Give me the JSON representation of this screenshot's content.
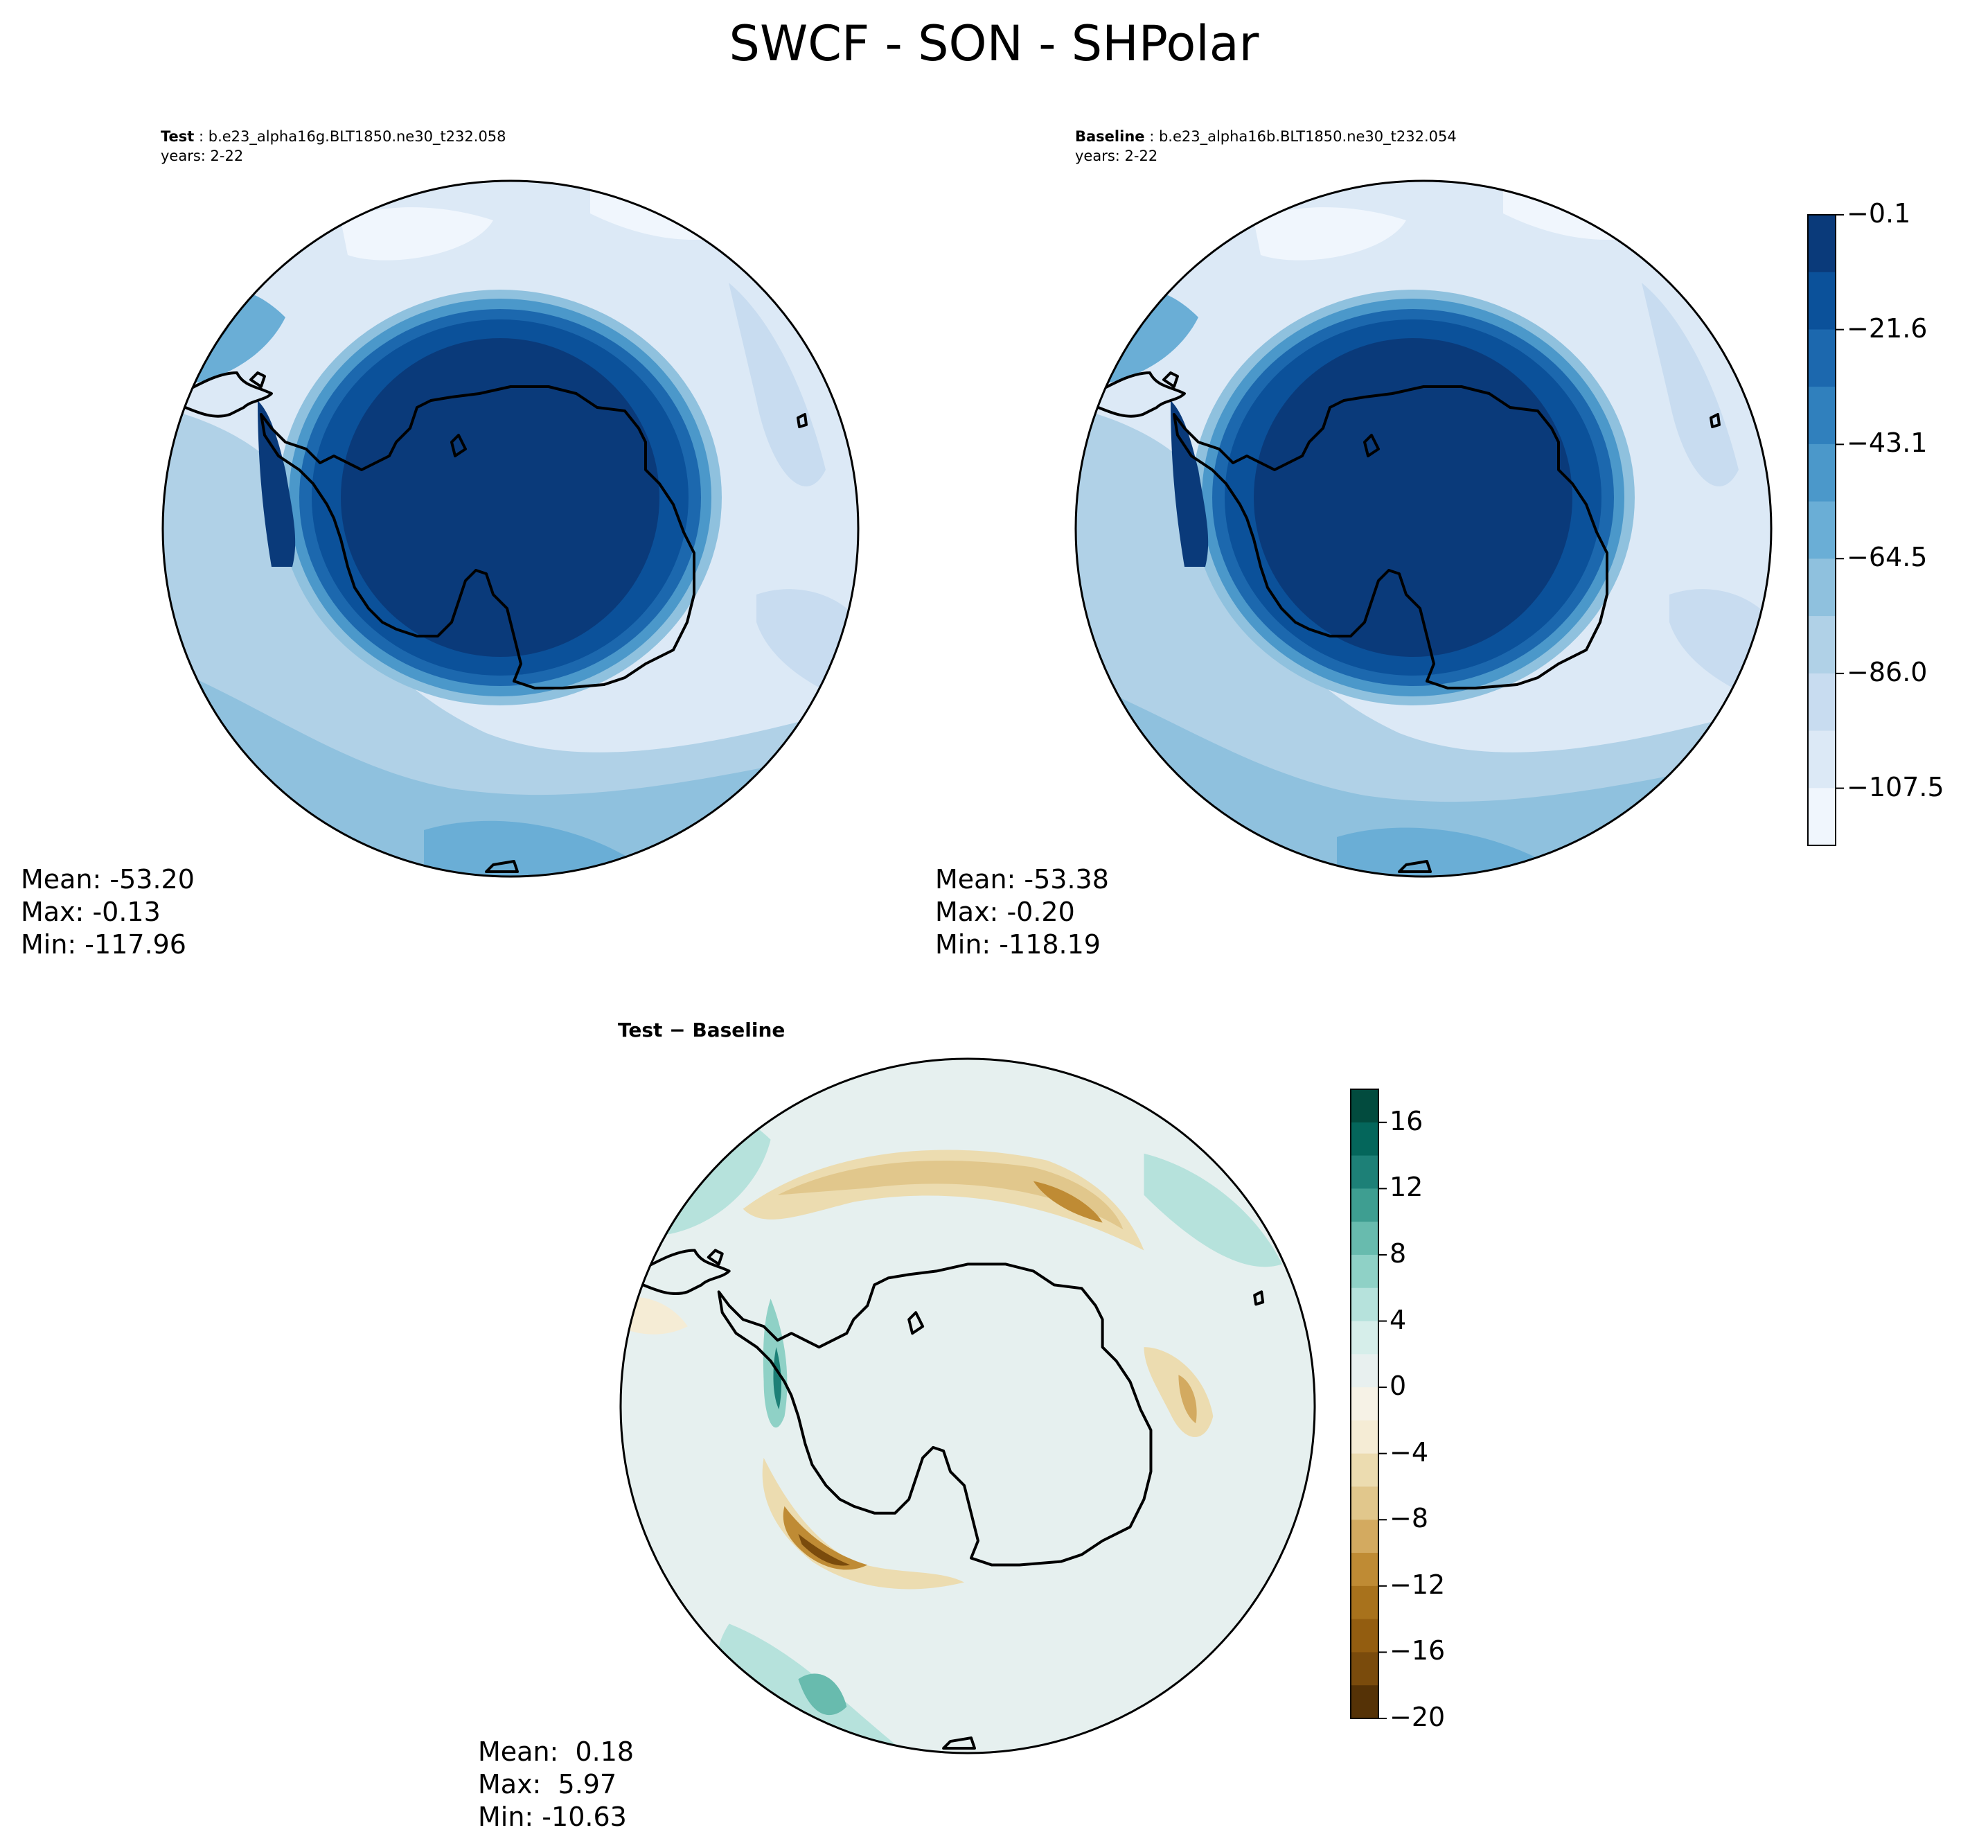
{
  "figure": {
    "title": "SWCF - SON - SHPolar"
  },
  "panels": {
    "test": {
      "label": "Test",
      "case": " : b.e23_alpha16g.BLT1850.ne30_t232.058",
      "years": "years: 2-22",
      "stats": {
        "mean": "Mean: -53.20",
        "max": "Max: -0.13",
        "min": "Min: -117.96"
      }
    },
    "baseline": {
      "label": "Baseline",
      "case": " : b.e23_alpha16b.BLT1850.ne30_t232.054",
      "years": "years: 2-22",
      "stats": {
        "mean": "Mean: -53.38",
        "max": "Max: -0.20",
        "min": "Min: -118.19"
      }
    },
    "diff": {
      "title": "Test − Baseline",
      "stats": {
        "mean": "Mean:  0.18",
        "max": "Max:  5.97",
        "min": "Min: -10.63"
      }
    }
  },
  "colorbars": {
    "main": {
      "ticks": [
        "−0.1",
        "−21.6",
        "−43.1",
        "−64.5",
        "−86.0",
        "−107.5"
      ],
      "tick_values": [
        -0.1,
        -21.6,
        -43.1,
        -64.5,
        -86.0,
        -107.5
      ],
      "range": [
        -118.2,
        -0.1
      ],
      "levels": 11,
      "colors": [
        "#f0f6fd",
        "#dce9f6",
        "#c8dcf0",
        "#b0d1e7",
        "#8fc1de",
        "#6aaed6",
        "#4b98ca",
        "#3080bd",
        "#1c68ae",
        "#0b519a",
        "#0a3a7a"
      ]
    },
    "diff": {
      "ticks": [
        "16",
        "12",
        "8",
        "4",
        "0",
        "−4",
        "−8",
        "−12",
        "−16",
        "−20"
      ],
      "tick_values": [
        16,
        12,
        8,
        4,
        0,
        -4,
        -8,
        -12,
        -16,
        -20
      ],
      "range": [
        -20,
        18
      ],
      "colors_from_bottom": [
        "#553206",
        "#7a4b0c",
        "#935d10",
        "#a8721c",
        "#bf8b34",
        "#d3aa60",
        "#e1c78c",
        "#ecdcb0",
        "#f5ecd5",
        "#f6f2e6",
        "#e8f0ef",
        "#d6eeea",
        "#b6e2dc",
        "#8fd1c6",
        "#68bbae",
        "#3e9e91",
        "#1d8077",
        "#04665b",
        "#024b3e"
      ]
    }
  },
  "map_colors": {
    "coast": "#000000",
    "test_antarctic": "#0a3a7a",
    "diff_neutral": "#e6f0ef"
  }
}
